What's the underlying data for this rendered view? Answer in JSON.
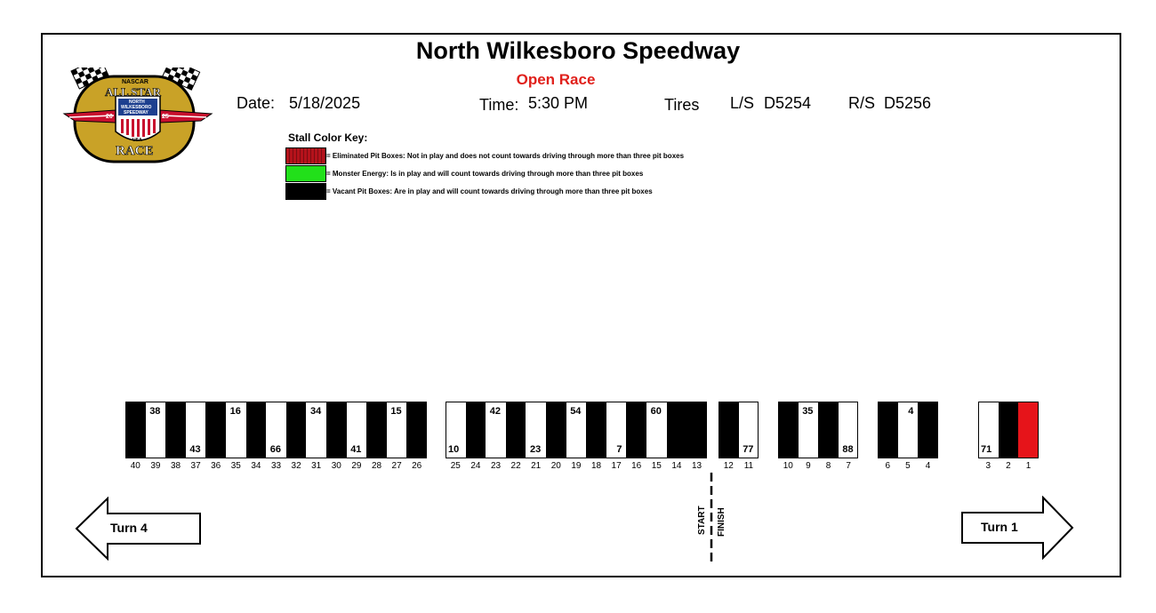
{
  "header": {
    "title": "North Wilkesboro Speedway",
    "subtitle": "Open Race",
    "date_label": "Date:",
    "date_value": "5/18/2025",
    "time_label": "Time:",
    "time_value": "5:30 PM",
    "tires_label": "Tires",
    "ls_label": "L/S",
    "ls_value": "D5254",
    "rs_label": "R/S",
    "rs_value": "D5256"
  },
  "logo": {
    "top_text": "NASCAR",
    "main_text": "ALL STAR",
    "bottom_text": "RACE",
    "badge_line1": "NORTH",
    "badge_line2": "WILKESBORO",
    "badge_line3": "SPEEDWAY",
    "badge_usa": "USA",
    "year_left": "20",
    "year_right": "25",
    "icon": "checkered-flags-icon"
  },
  "key": {
    "title": "Stall Color Key:",
    "items": [
      {
        "color": "#b5121b",
        "text": "= Eliminated Pit Boxes:  Not in play and does not count towards driving through more than three pit boxes"
      },
      {
        "color": "#22e01a",
        "text": "= Monster Energy:  Is in play and will count towards driving through more than three pit boxes"
      },
      {
        "color": "#000000",
        "text": "= Vacant Pit Boxes:  Are in play and will count towards driving through more than three pit boxes"
      }
    ]
  },
  "stalls": [
    {
      "stall": "40",
      "color": "black",
      "car": ""
    },
    {
      "stall": "39",
      "color": "white",
      "car": "38"
    },
    {
      "stall": "38",
      "color": "black",
      "car": ""
    },
    {
      "stall": "37",
      "color": "white",
      "car": "43"
    },
    {
      "stall": "36",
      "color": "black",
      "car": ""
    },
    {
      "stall": "35",
      "color": "white",
      "car": "16"
    },
    {
      "stall": "34",
      "color": "black",
      "car": ""
    },
    {
      "stall": "33",
      "color": "white",
      "car": "66"
    },
    {
      "stall": "32",
      "color": "black",
      "car": ""
    },
    {
      "stall": "31",
      "color": "white",
      "car": "34"
    },
    {
      "stall": "30",
      "color": "black",
      "car": ""
    },
    {
      "stall": "29",
      "color": "white",
      "car": "41"
    },
    {
      "stall": "28",
      "color": "black",
      "car": ""
    },
    {
      "stall": "27",
      "color": "white",
      "car": "15"
    },
    {
      "stall": "26",
      "color": "black",
      "car": ""
    },
    {
      "stall": "25",
      "color": "white",
      "car": "10"
    },
    {
      "stall": "24",
      "color": "black",
      "car": ""
    },
    {
      "stall": "23",
      "color": "white",
      "car": "42"
    },
    {
      "stall": "22",
      "color": "black",
      "car": ""
    },
    {
      "stall": "21",
      "color": "white",
      "car": "23"
    },
    {
      "stall": "20",
      "color": "black",
      "car": ""
    },
    {
      "stall": "19",
      "color": "white",
      "car": "54"
    },
    {
      "stall": "18",
      "color": "black",
      "car": ""
    },
    {
      "stall": "17",
      "color": "white",
      "car": "7"
    },
    {
      "stall": "16",
      "color": "black",
      "car": ""
    },
    {
      "stall": "15",
      "color": "white",
      "car": "60"
    },
    {
      "stall": "14",
      "color": "black",
      "car": ""
    },
    {
      "stall": "13",
      "color": "black",
      "car": ""
    },
    {
      "stall": "12",
      "color": "black",
      "car": ""
    },
    {
      "stall": "11",
      "color": "white",
      "car": "77"
    },
    {
      "stall": "10",
      "color": "black",
      "car": ""
    },
    {
      "stall": "9",
      "color": "white",
      "car": "35"
    },
    {
      "stall": "8",
      "color": "black",
      "car": ""
    },
    {
      "stall": "7",
      "color": "white",
      "car": "88"
    },
    {
      "stall": "6",
      "color": "black",
      "car": ""
    },
    {
      "stall": "5",
      "color": "white",
      "car": "4"
    },
    {
      "stall": "4",
      "color": "black",
      "car": ""
    },
    {
      "stall": "3",
      "color": "white",
      "car": "71"
    },
    {
      "stall": "2",
      "color": "black",
      "car": ""
    },
    {
      "stall": "1",
      "color": "red",
      "car": ""
    }
  ],
  "turn4_label": "Turn 4",
  "turn1_label": "Turn 1",
  "start_label": "START",
  "finish_label": "FINISH"
}
